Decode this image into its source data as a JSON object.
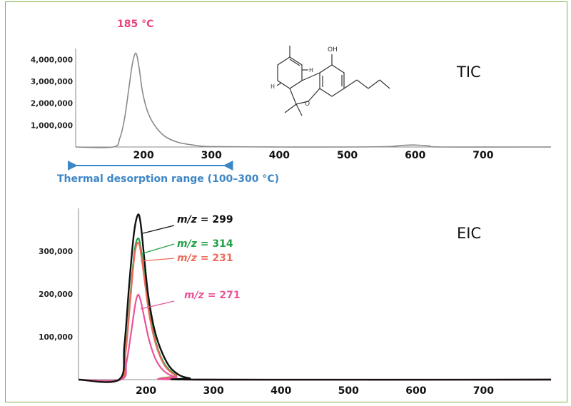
{
  "chart_data": [
    {
      "type": "line",
      "title": "TIC",
      "xlim": [
        100,
        800
      ],
      "ylim": [
        0,
        4500000
      ],
      "x_ticks": [
        200,
        300,
        400,
        500,
        600,
        700
      ],
      "x_tick_labels": [
        "200",
        "300",
        "400",
        "500",
        "600",
        "700"
      ],
      "y_ticks": [
        1000000,
        2000000,
        3000000,
        4000000
      ],
      "y_tick_labels": [
        "1,000,000",
        "2,000,000",
        "3,000,000",
        "4,000,000"
      ],
      "annotations": {
        "peak_label": "185 °C",
        "range_label": "Thermal desorption range (100–300 °C)",
        "range": [
          100,
          320
        ]
      },
      "series": [
        {
          "color": "#8a8a8a",
          "x": [
            100,
            155,
            165,
            172,
            178,
            183,
            187,
            190,
            194,
            198,
            205,
            215,
            230,
            250,
            275,
            300,
            400,
            500,
            560,
            580,
            600,
            620,
            640,
            800
          ],
          "y": [
            0,
            0,
            400000,
            1300000,
            2600000,
            3700000,
            4230000,
            4200000,
            3500000,
            2600000,
            1700000,
            1050000,
            520000,
            220000,
            80000,
            20000,
            0,
            0,
            20000,
            70000,
            90000,
            50000,
            0,
            0
          ]
        }
      ]
    },
    {
      "type": "line",
      "title": "EIC",
      "xlim": [
        100,
        800
      ],
      "ylim": [
        0,
        400000
      ],
      "x_ticks": [
        200,
        300,
        400,
        500,
        600,
        700
      ],
      "x_tick_labels": [
        "200",
        "300",
        "400",
        "500",
        "600",
        "700"
      ],
      "y_ticks": [
        100000,
        200000,
        300000
      ],
      "y_tick_labels": [
        "100,000",
        "200,000",
        "300,000"
      ],
      "series": [
        {
          "name_prefix": "m/z",
          "name_suffix": " = 299",
          "color": "#111111",
          "x": [
            100,
            160,
            168,
            175,
            182,
            188,
            192,
            197,
            203,
            212,
            222,
            235,
            250,
            265,
            280,
            800
          ],
          "y": [
            0,
            0,
            80000,
            220000,
            340000,
            385000,
            365000,
            290000,
            200000,
            120000,
            70000,
            30000,
            10000,
            3000,
            0,
            0
          ]
        },
        {
          "name_prefix": "m/z",
          "name_suffix": " = 314",
          "color": "#22a045",
          "x": [
            100,
            162,
            170,
            177,
            183,
            188,
            192,
            198,
            205,
            215,
            228,
            245,
            265,
            800
          ],
          "y": [
            0,
            0,
            70000,
            200000,
            300000,
            330000,
            310000,
            240000,
            160000,
            85000,
            35000,
            10000,
            0,
            0
          ]
        },
        {
          "name_prefix": "m/z",
          "name_suffix": " = 231",
          "color": "#ef6b5b",
          "x": [
            100,
            162,
            170,
            177,
            183,
            188,
            192,
            198,
            205,
            215,
            228,
            245,
            265,
            800
          ],
          "y": [
            0,
            0,
            65000,
            190000,
            290000,
            320000,
            300000,
            230000,
            150000,
            80000,
            32000,
            9000,
            0,
            0
          ]
        },
        {
          "name_prefix": "m/z",
          "name_suffix": " = 271",
          "color": "#e8559a",
          "x": [
            100,
            163,
            171,
            178,
            184,
            188,
            192,
            198,
            205,
            215,
            228,
            245,
            262,
            800
          ],
          "y": [
            0,
            0,
            40000,
            110000,
            175000,
            198000,
            185000,
            140000,
            90000,
            45000,
            18000,
            5000,
            0,
            0
          ]
        }
      ]
    }
  ]
}
